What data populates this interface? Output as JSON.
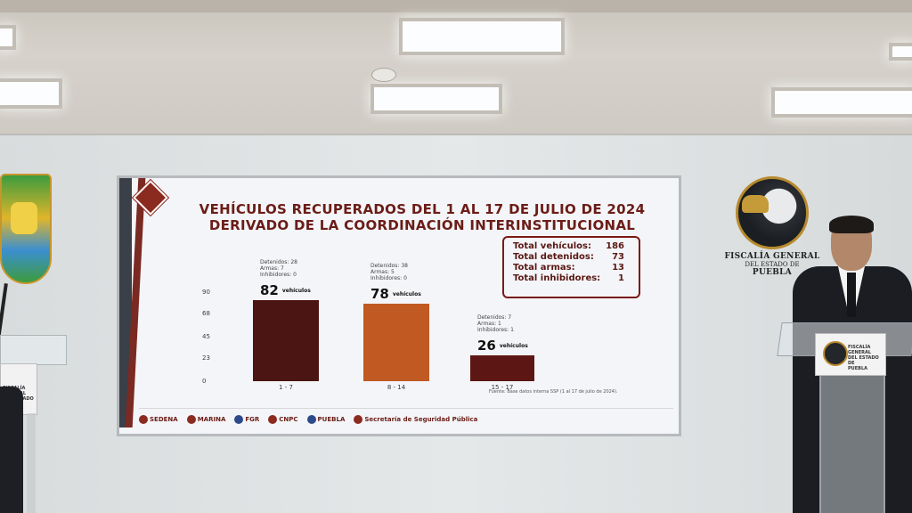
{
  "screen": {
    "title_line1": "VEHÍCULOS RECUPERADOS DEL 1 AL 17 DE JULIO DE 2024",
    "title_line2": "DERIVADO DE LA COORDINACIÓN INTERINSTITUCIONAL",
    "summary": [
      {
        "label": "Total vehículos:",
        "value": "186"
      },
      {
        "label": "Total detenidos:",
        "value": "73"
      },
      {
        "label": "Total armas:",
        "value": "13"
      },
      {
        "label": "Total inhibidores:",
        "value": "1"
      }
    ],
    "source": "Fuente: Base datos interna SSP (1 al 17 de julio de 2024).",
    "footer_logos": [
      "SEDENA",
      "MARINA",
      "FGR",
      "CNPC",
      "PUEBLA",
      "Secretaría de Seguridad Pública"
    ]
  },
  "chart_data": {
    "type": "bar",
    "categories": [
      "1 - 7",
      "8 - 14",
      "15 - 17"
    ],
    "values": [
      82,
      78,
      26
    ],
    "value_suffix": "vehículos",
    "yticks": [
      0,
      23,
      45,
      68,
      90
    ],
    "ylim": [
      0,
      90
    ],
    "bar_colors": [
      "#4a1512",
      "#c05a22",
      "#5c1613"
    ],
    "notes": [
      [
        "Detenidos: 28",
        "Armas: 7",
        "Inhibidores: 0"
      ],
      [
        "Detenidos: 38",
        "Armas: 5",
        "Inhibidores: 0"
      ],
      [
        "Detenidos: 7",
        "Armas: 1",
        "Inhibidores: 1"
      ]
    ]
  },
  "wall": {
    "fiscalia_line1": "FISCALÍA GENERAL",
    "fiscalia_line2": "DEL ESTADO DE",
    "fiscalia_line3": "PUEBLA",
    "podium_left_text": "FISCALÍA GENERAL",
    "podium_left_text2": "DEL ESTADO DE",
    "podium_right_text": "FISCALÍA GENERAL",
    "podium_right_text2": "DEL ESTADO DE",
    "podium_right_text3": "PUEBLA"
  }
}
